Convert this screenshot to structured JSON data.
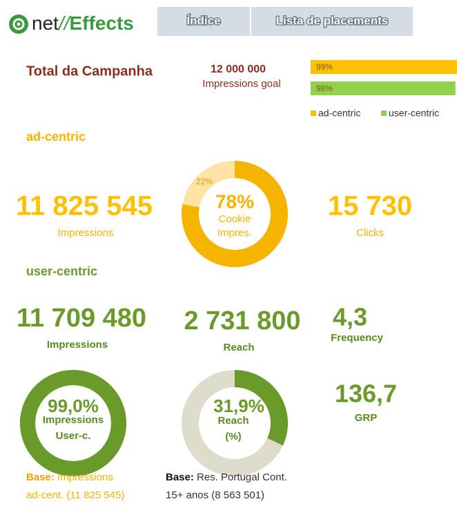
{
  "header": {
    "logo": [
      "net",
      "//",
      "Effects"
    ],
    "tabs": [
      "Índice",
      "Lista de placements"
    ]
  },
  "campaign": {
    "title": "Total da Campanha",
    "goal_value": "12 000 000",
    "goal_label": "Impressions goal"
  },
  "progress": {
    "xlim": [
      0,
      100
    ],
    "series": [
      {
        "name": "ad-centric",
        "value": 99,
        "value_label": "99%",
        "color": "#ffc000"
      },
      {
        "name": "user-centric",
        "value": 98,
        "value_label": "98%",
        "color": "#92d050"
      }
    ]
  },
  "ad_centric": {
    "title": "ad-centric",
    "impressions": {
      "value": "11 825 545",
      "label": "Impressions"
    },
    "clicks": {
      "value": "15 730",
      "label": "Clicks"
    },
    "donut": {
      "range": [
        0,
        100
      ],
      "values": [
        78,
        22
      ],
      "value_labels": [
        "78%",
        "22%"
      ],
      "colors": [
        "#f5b400",
        "#fde3a6"
      ],
      "caption": [
        "Cookie",
        "Impres."
      ]
    }
  },
  "user_centric": {
    "title": "user-centric",
    "impressions": {
      "value": "11 709 480",
      "label": "Impressions"
    },
    "reach": {
      "value": "2 731 800",
      "label": "Reach"
    },
    "frequency": {
      "value": "4,3",
      "label": "Frequency"
    },
    "grp": {
      "value": "136,7",
      "label": "GRP"
    },
    "donut_impressions": {
      "range": [
        0,
        100
      ],
      "values": [
        99.0
      ],
      "value_labels": [
        "99,0%"
      ],
      "colors": [
        "#6a9a2a"
      ],
      "track_color": "#6a9a2a",
      "caption": [
        "Impressions",
        "User-c."
      ]
    },
    "donut_reach": {
      "range": [
        0,
        100
      ],
      "values": [
        31.9
      ],
      "value_labels": [
        "31,9%"
      ],
      "colors": [
        "#6a9a2a"
      ],
      "track_color": "#dedcca",
      "caption": [
        "Reach",
        "(%)"
      ]
    }
  },
  "bases": [
    {
      "label": "Base:",
      "lines": [
        "Impressions",
        "ad-cent. (11 825 545)"
      ]
    },
    {
      "label": "Base:",
      "lines": [
        "Res. Portugal Cont.",
        "15+ anos (8 563 501)"
      ]
    }
  ]
}
